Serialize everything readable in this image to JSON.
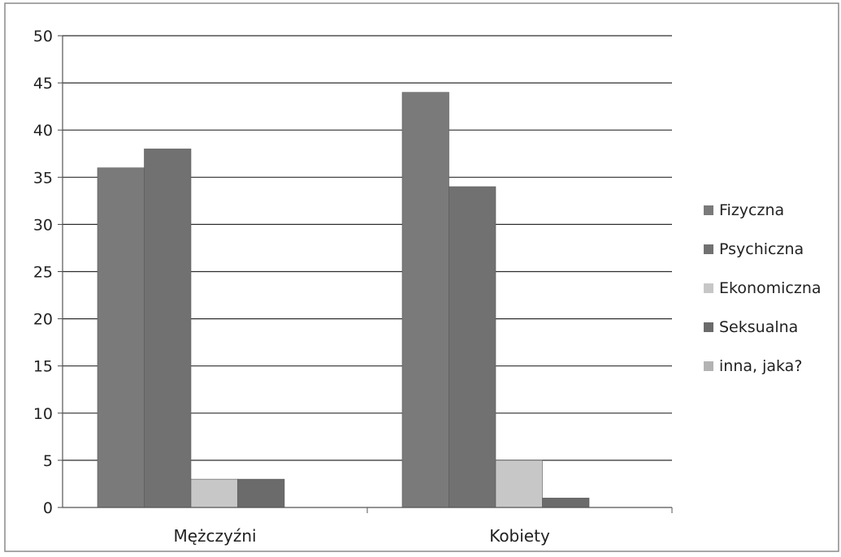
{
  "chart_data": {
    "type": "bar",
    "categories": [
      "Mężczyźni",
      "Kobiety"
    ],
    "series": [
      {
        "name": "Fizyczna",
        "values": [
          36,
          44
        ],
        "color": "#7a7a7a"
      },
      {
        "name": "Psychiczna",
        "values": [
          38,
          34
        ],
        "color": "#717171"
      },
      {
        "name": "Ekonomiczna",
        "values": [
          3,
          5
        ],
        "color": "#c7c7c7"
      },
      {
        "name": "Seksualna",
        "values": [
          3,
          1
        ],
        "color": "#6b6b6b"
      },
      {
        "name": "inna, jaka?",
        "values": [
          0,
          0
        ],
        "color": "#b3b3b3"
      }
    ],
    "y_ticks": [
      0,
      5,
      10,
      15,
      20,
      25,
      30,
      35,
      40,
      45,
      50
    ],
    "ylim": [
      0,
      50
    ],
    "grid": true,
    "legend_position": "right",
    "title": "",
    "xlabel": "",
    "ylabel": ""
  }
}
